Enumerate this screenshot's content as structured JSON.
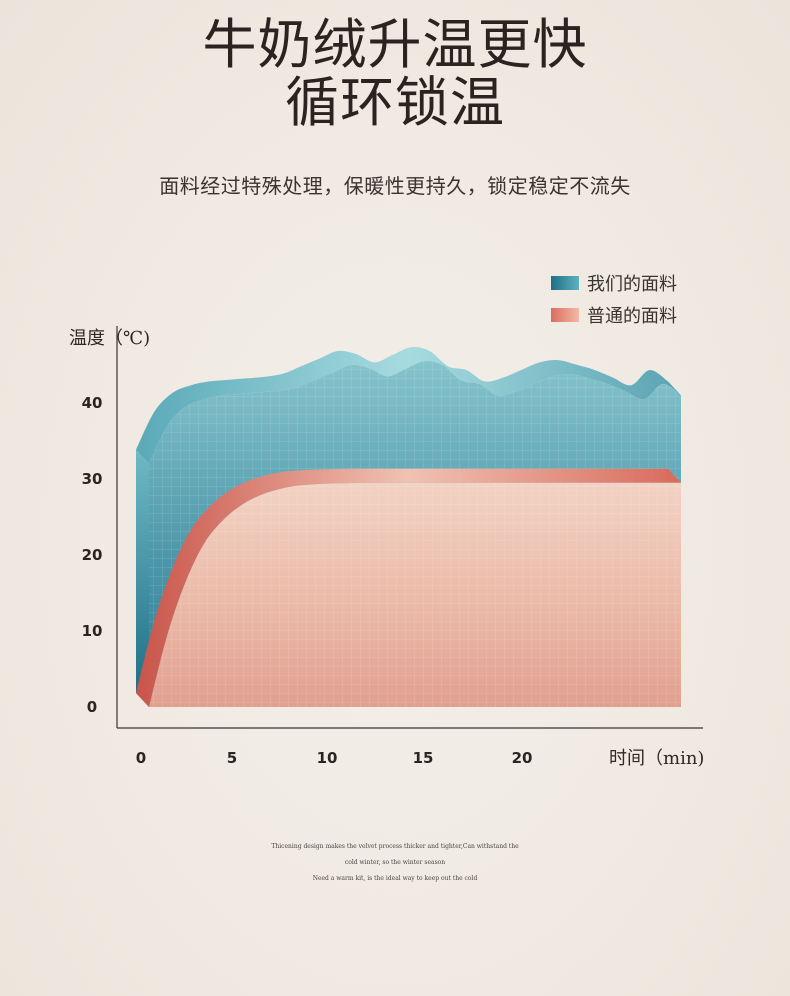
{
  "header": {
    "title_line1": "牛奶绒升温更快",
    "title_line2": "循环锁温",
    "subtitle": "面料经过特殊处理，保暖性更持久，锁定稳定不流失"
  },
  "footer": {
    "line1": "Thicening design makes the velvet process thicker and tighter,Can withstand the",
    "line2": "cold winter, so the winter season",
    "line3": "Need a warm kit, is the ideal way to keep out the cold"
  },
  "colors": {
    "ours_dark": "#1e6f86",
    "ours_light": "#8ccbd3",
    "normal_dark": "#d4685a",
    "normal_light": "#f2cfc0"
  },
  "chart_data": {
    "type": "area",
    "xlabel": "时间（min)",
    "ylabel": "温度（℃)",
    "x_ticks": [
      "0",
      "5",
      "10",
      "15",
      "20"
    ],
    "y_ticks": [
      "0",
      "10",
      "20",
      "30",
      "40"
    ],
    "xlim": [
      0,
      29
    ],
    "ylim": [
      0,
      40
    ],
    "legend_position": "top-right",
    "series": [
      {
        "name": "我们的面料",
        "x": [
          0,
          1,
          2,
          3,
          4,
          5,
          6,
          7,
          8,
          9,
          10,
          11,
          12,
          13,
          14,
          15,
          16,
          17,
          18,
          19,
          20,
          21,
          22,
          23,
          24,
          25,
          26,
          27,
          28,
          29
        ],
        "y": [
          32,
          37,
          39.5,
          40.5,
          41,
          41.2,
          41.4,
          41.6,
          42,
          43,
          44,
          45,
          44.6,
          43.5,
          44.5,
          45.5,
          45,
          43,
          42.5,
          41,
          41.5,
          42.5,
          43.5,
          43.8,
          43.2,
          42.5,
          41.5,
          40.5,
          42.5,
          41
        ]
      },
      {
        "name": "普通的面料",
        "x": [
          0,
          1,
          2,
          3,
          4,
          5,
          6,
          7,
          8,
          9,
          10,
          12,
          14,
          16,
          18,
          20,
          22,
          24,
          26,
          28,
          29
        ],
        "y": [
          0,
          9.5,
          16.5,
          21.5,
          24.5,
          26.5,
          27.8,
          28.6,
          29.1,
          29.3,
          29.4,
          29.5,
          29.5,
          29.5,
          29.5,
          29.5,
          29.5,
          29.5,
          29.5,
          29.5,
          29.5
        ]
      }
    ]
  }
}
